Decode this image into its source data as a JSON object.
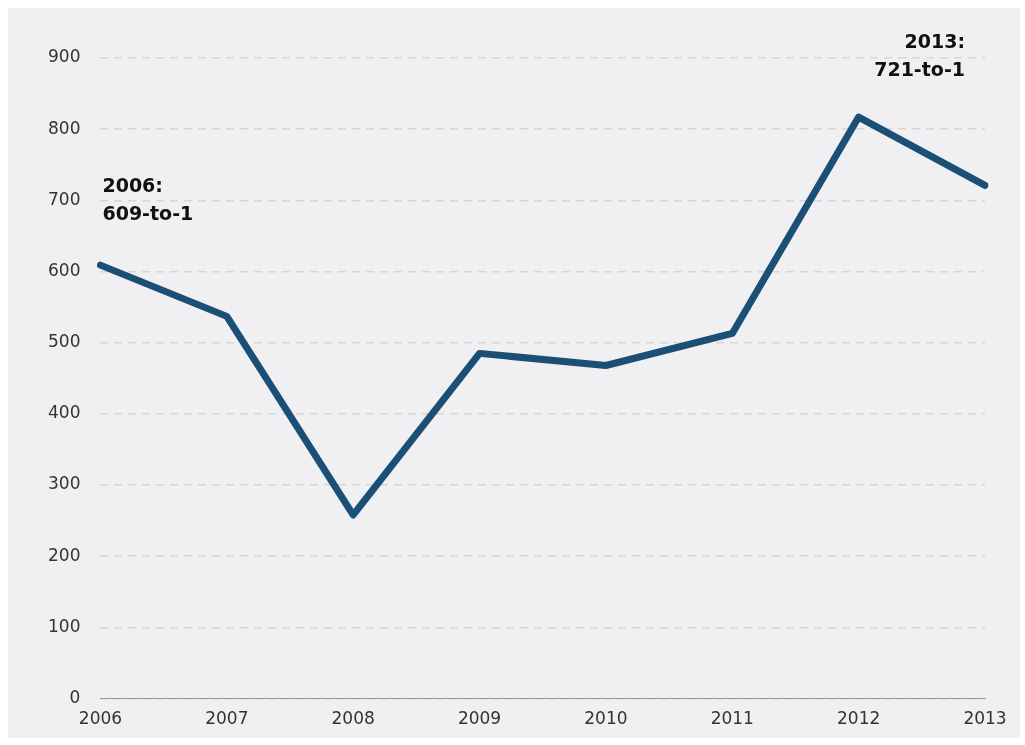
{
  "chart_data": {
    "type": "line",
    "categories": [
      "2006",
      "2007",
      "2008",
      "2009",
      "2010",
      "2011",
      "2012",
      "2013"
    ],
    "series": [
      {
        "color": "#1b4f76",
        "values": [
          609,
          537,
          258,
          485,
          468,
          513,
          817,
          721
        ]
      }
    ],
    "ylim": [
      0,
      900
    ],
    "yticks": [
      0,
      100,
      200,
      300,
      400,
      500,
      600,
      700,
      800,
      900
    ],
    "grid": "y",
    "legend": false,
    "marker": "none",
    "line_style": "solid",
    "annotations": [
      {
        "text": "2006:\n609-to-1",
        "x": "2006",
        "y": 609
      },
      "2013:\n721-to-1"
    ]
  }
}
